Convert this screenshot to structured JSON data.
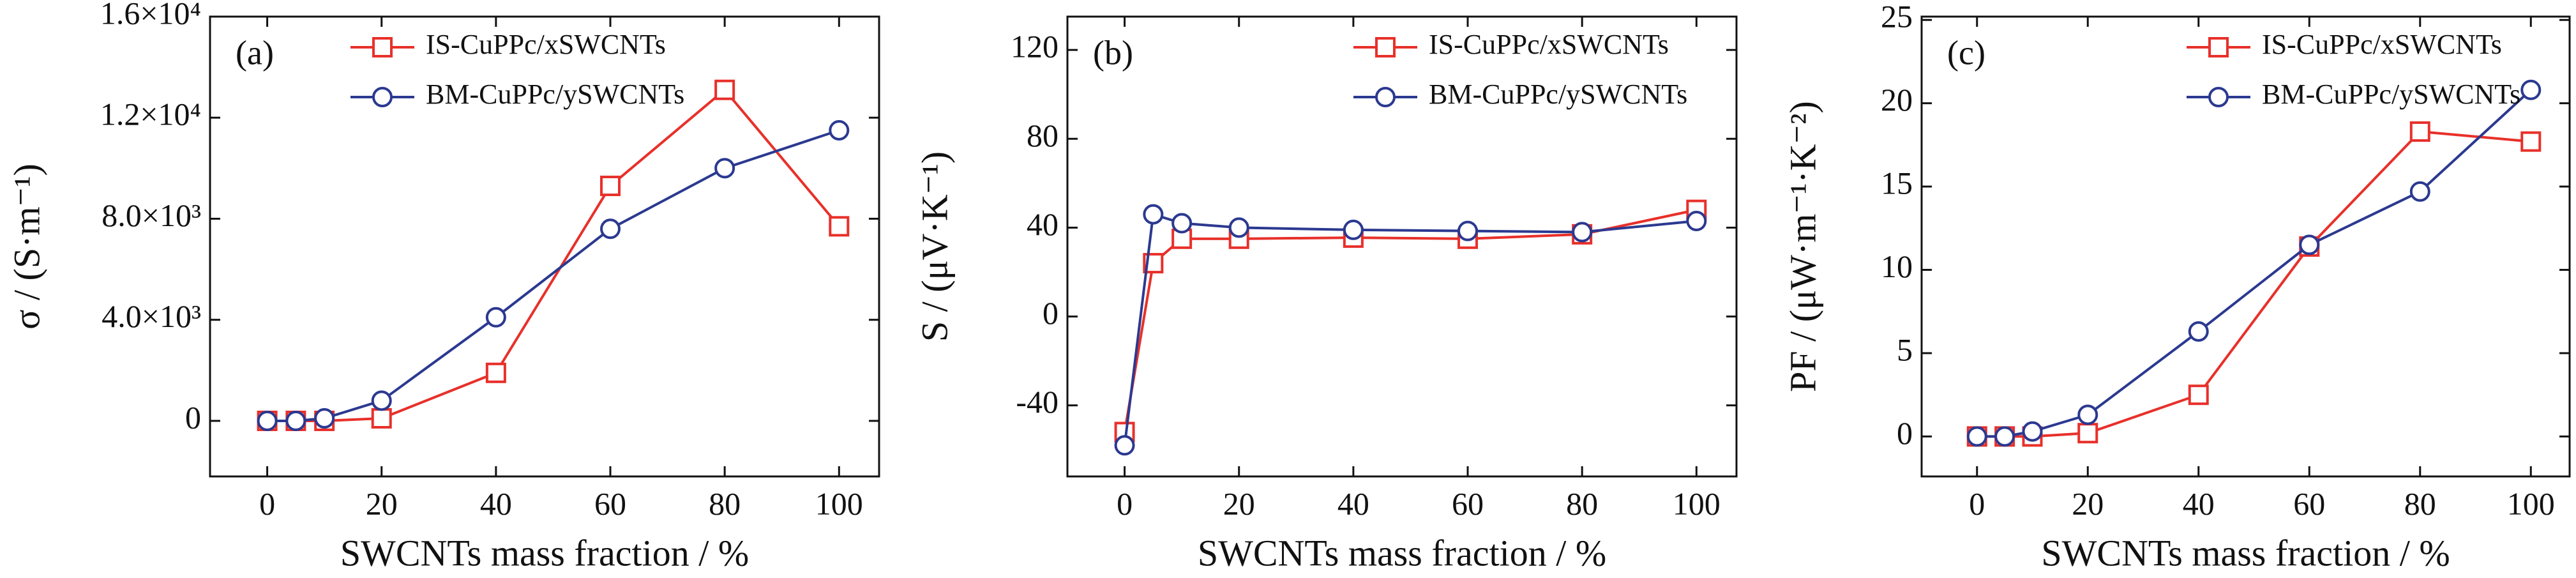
{
  "chart_data": [
    {
      "type": "line",
      "panel_label": "(a)",
      "xlabel": "SWCNTs mass fraction / %",
      "ylabel": "σ / (S·m⁻¹)",
      "x": [
        0,
        5,
        10,
        20,
        40,
        60,
        80,
        100
      ],
      "xlim": [
        -10,
        107
      ],
      "xticks": [
        0,
        20,
        40,
        60,
        80,
        100
      ],
      "ylim": [
        -2200,
        16000
      ],
      "yticks": [
        0,
        {
          "value": 4000,
          "label": "4.0×10³"
        },
        {
          "value": 8000,
          "label": "8.0×10³"
        },
        {
          "value": 12000,
          "label": "1.2×10⁴"
        },
        {
          "value": 16000,
          "label": "1.6×10⁴"
        }
      ],
      "legend": "upper left",
      "series": [
        {
          "name": "IS-CuPPc/xSWCNTs",
          "color": "#e8302a",
          "marker": "square",
          "values": [
            0,
            0,
            0,
            100,
            1900,
            9300,
            13100,
            7700
          ]
        },
        {
          "name": "BM-CuPPc/ySWCNTs",
          "color": "#2b3990",
          "marker": "circle",
          "values": [
            0,
            0,
            100,
            800,
            4100,
            7600,
            10000,
            11500
          ]
        }
      ]
    },
    {
      "type": "line",
      "panel_label": "(b)",
      "xlabel": "SWCNTs mass fraction / %",
      "ylabel": "S / (μV·K⁻¹)",
      "x": [
        0,
        5,
        10,
        20,
        40,
        60,
        80,
        100
      ],
      "xlim": [
        -10,
        107
      ],
      "xticks": [
        0,
        20,
        40,
        60,
        80,
        100
      ],
      "ylim": [
        -72,
        135
      ],
      "yticks": [
        -40,
        0,
        40,
        80,
        120
      ],
      "legend": "upper right",
      "series": [
        {
          "name": "IS-CuPPc/xSWCNTs",
          "color": "#e8302a",
          "marker": "square",
          "values": [
            -52,
            24,
            35,
            35,
            35.5,
            35,
            37,
            48
          ]
        },
        {
          "name": "BM-CuPPc/ySWCNTs",
          "color": "#2b3990",
          "marker": "circle",
          "values": [
            -58,
            46,
            42,
            40,
            39,
            38.5,
            38,
            43
          ]
        }
      ]
    },
    {
      "type": "line",
      "panel_label": "(c)",
      "xlabel": "SWCNTs mass fraction / %",
      "ylabel": "PF / (μW·m⁻¹·K⁻²)",
      "x": [
        0,
        5,
        10,
        20,
        40,
        60,
        80,
        100
      ],
      "xlim": [
        -10,
        107
      ],
      "xticks": [
        0,
        20,
        40,
        60,
        80,
        100
      ],
      "ylim": [
        -2.4,
        25.2
      ],
      "yticks": [
        0,
        5,
        10,
        15,
        20,
        25
      ],
      "legend": "upper right",
      "series": [
        {
          "name": "IS-CuPPc/xSWCNTs",
          "color": "#e8302a",
          "marker": "square",
          "values": [
            0,
            0,
            0,
            0.2,
            2.5,
            11.4,
            18.3,
            17.7
          ]
        },
        {
          "name": "BM-CuPPc/ySWCNTs",
          "color": "#2b3990",
          "marker": "circle",
          "values": [
            0,
            0,
            0.3,
            1.3,
            6.3,
            11.5,
            14.7,
            20.8
          ]
        }
      ]
    }
  ]
}
